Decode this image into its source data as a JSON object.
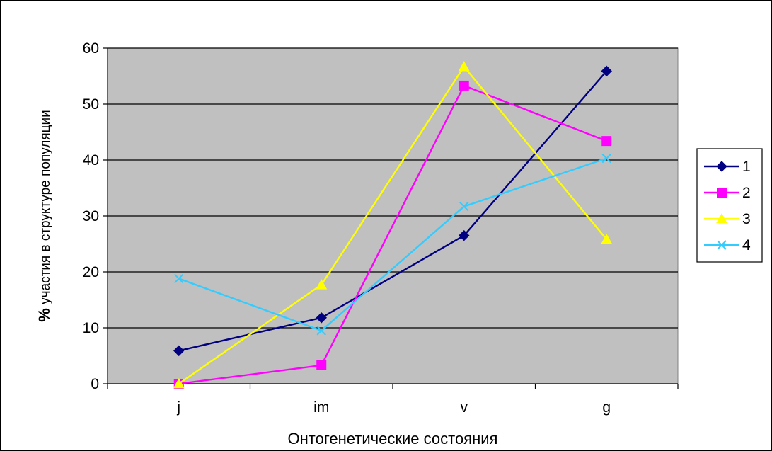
{
  "chart_data": {
    "type": "line",
    "title": "",
    "xlabel": "Онтогенетические состояния",
    "ylabel_bold": "%",
    "ylabel_rest": " участия в структуре популяции",
    "categories": [
      "j",
      "im",
      "v",
      "g"
    ],
    "ylim": [
      0,
      60
    ],
    "yticks": [
      0,
      10,
      20,
      30,
      40,
      50,
      60
    ],
    "grid": true,
    "plot_background": "#c0c0c0",
    "legend_position": "right",
    "series": [
      {
        "name": "1",
        "values": [
          5.9,
          11.8,
          26.5,
          55.9
        ],
        "color": "#000080",
        "marker": "diamond"
      },
      {
        "name": "2",
        "values": [
          0,
          3.3,
          53.3,
          43.4
        ],
        "color": "#ff00ff",
        "marker": "square"
      },
      {
        "name": "3",
        "values": [
          0,
          17.7,
          56.7,
          25.8
        ],
        "color": "#ffff00",
        "marker": "triangle"
      },
      {
        "name": "4",
        "values": [
          18.8,
          9.5,
          31.7,
          40.3
        ],
        "color": "#33ccff",
        "marker": "x"
      }
    ]
  }
}
